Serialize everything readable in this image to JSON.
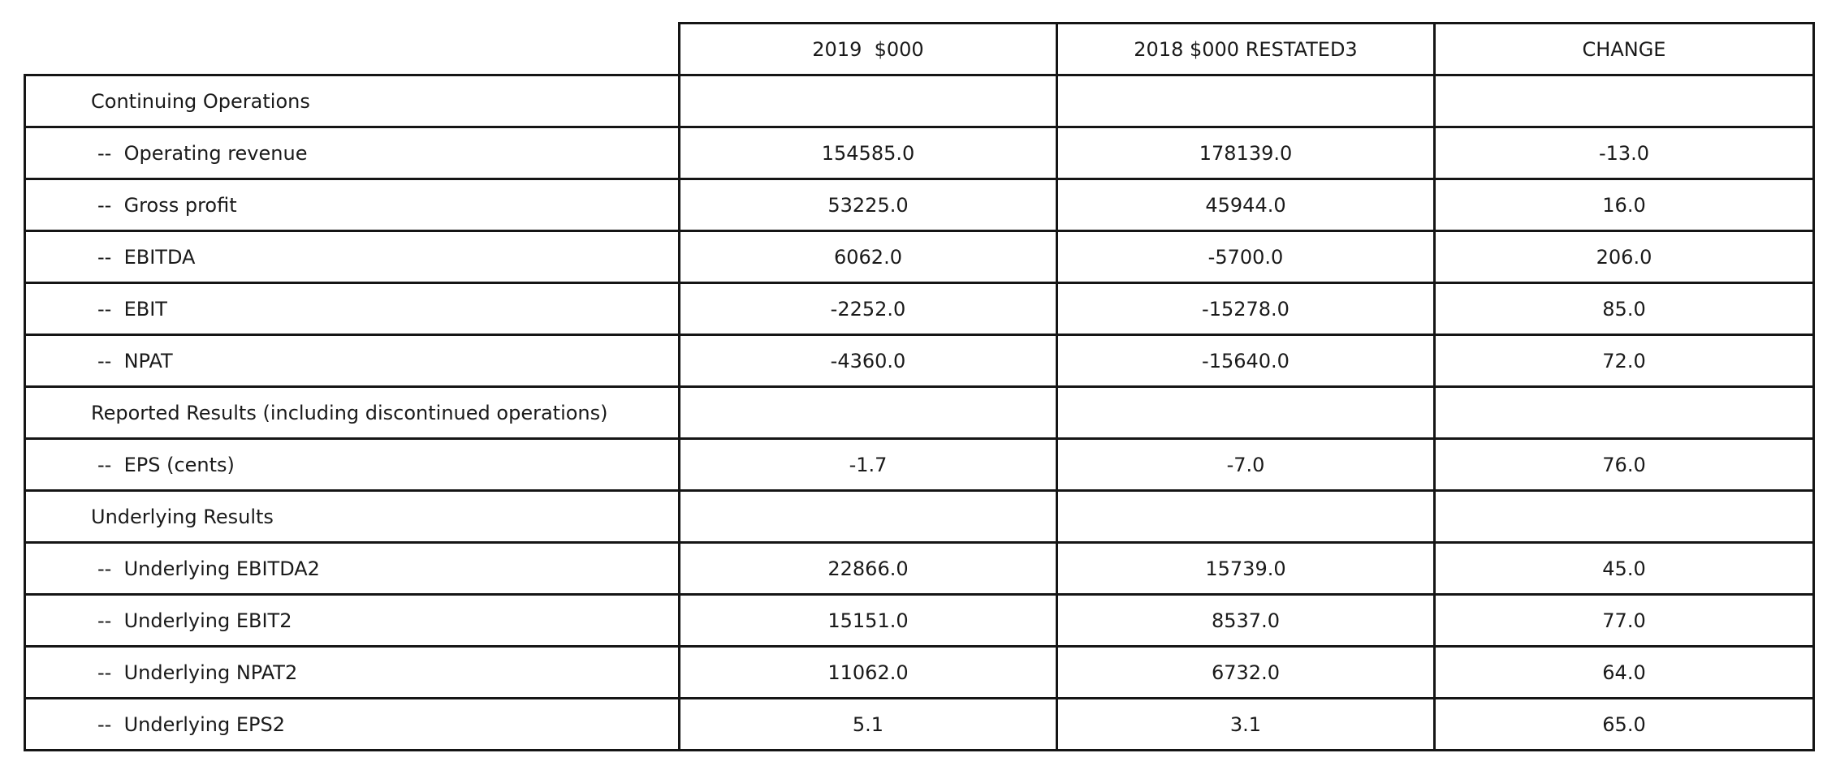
{
  "chart_data": {
    "type": "table",
    "columns": [
      "",
      "2019  $000",
      "2018 $000 RESTATED3",
      "CHANGE"
    ],
    "rows": [
      {
        "kind": "section",
        "label": "Continuing Operations",
        "values": [
          "",
          "",
          ""
        ]
      },
      {
        "kind": "item",
        "label": "--  Operating revenue",
        "values": [
          "154585.0",
          "178139.0",
          "-13.0"
        ]
      },
      {
        "kind": "item",
        "label": "--  Gross profit",
        "values": [
          "53225.0",
          "45944.0",
          "16.0"
        ]
      },
      {
        "kind": "item",
        "label": "--  EBITDA",
        "values": [
          "6062.0",
          "-5700.0",
          "206.0"
        ]
      },
      {
        "kind": "item",
        "label": "--  EBIT",
        "values": [
          "-2252.0",
          "-15278.0",
          "85.0"
        ]
      },
      {
        "kind": "item",
        "label": "--  NPAT",
        "values": [
          "-4360.0",
          "-15640.0",
          "72.0"
        ]
      },
      {
        "kind": "section",
        "label": "Reported Results (including discontinued operations)",
        "values": [
          "",
          "",
          ""
        ]
      },
      {
        "kind": "item",
        "label": "--  EPS (cents)",
        "values": [
          "-1.7",
          "-7.0",
          "76.0"
        ]
      },
      {
        "kind": "section",
        "label": "Underlying Results",
        "values": [
          "",
          "",
          ""
        ]
      },
      {
        "kind": "item",
        "label": "--  Underlying EBITDA2",
        "values": [
          "22866.0",
          "15739.0",
          "45.0"
        ]
      },
      {
        "kind": "item",
        "label": "--  Underlying EBIT2",
        "values": [
          "15151.0",
          "8537.0",
          "77.0"
        ]
      },
      {
        "kind": "item",
        "label": "--  Underlying NPAT2",
        "values": [
          "11062.0",
          "6732.0",
          "64.0"
        ]
      },
      {
        "kind": "item",
        "label": "--  Underlying EPS2",
        "values": [
          "5.1",
          "3.1",
          "65.0"
        ]
      }
    ]
  }
}
